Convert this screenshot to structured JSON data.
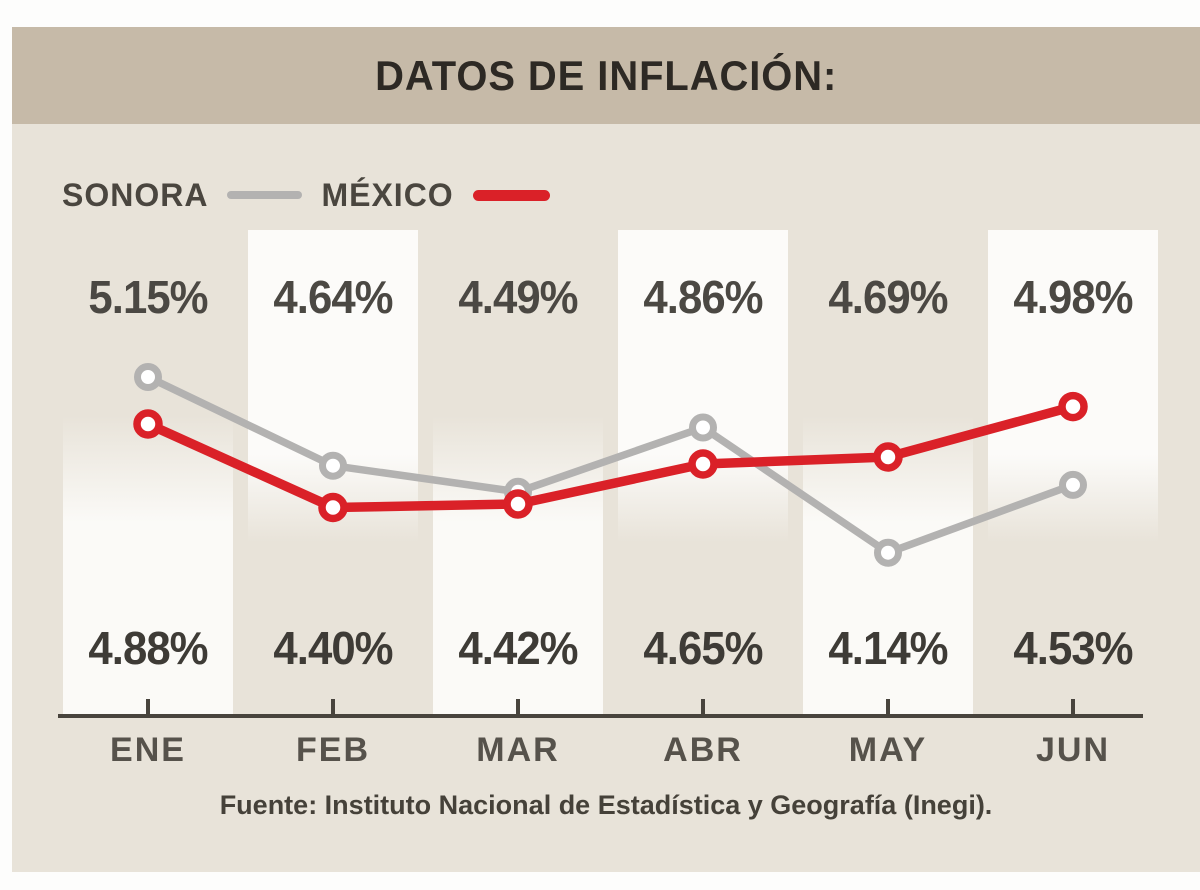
{
  "header": {
    "title": "DATOS DE INFLACIÓN:"
  },
  "legend": {
    "items": [
      {
        "label": "SONORA",
        "color": "#b3b2b1"
      },
      {
        "label": "MÉXICO",
        "color": "#da2128"
      }
    ]
  },
  "footer": {
    "source": "Fuente: Instituto Nacional de Estadística y Geografía (Inegi)."
  },
  "colors": {
    "page_bg": "#fdfdfc",
    "panel_bg": "#e8e3d9",
    "header_band": "#c6baa8",
    "stripe_white": "#fcfbf9",
    "sonora_gray": "#b3b2b1",
    "mexico_red": "#da2128",
    "axis": "#48443d",
    "title_text": "#2d2924",
    "value_text_top": "#4b4843",
    "value_text_bottom": "#3e3b36",
    "month_text": "#56524b"
  },
  "chart_data": {
    "type": "line",
    "title": "DATOS DE INFLACIÓN:",
    "categories": [
      "ENE",
      "FEB",
      "MAR",
      "ABR",
      "MAY",
      "JUN"
    ],
    "series": [
      {
        "name": "SONORA",
        "color": "#b3b2b1",
        "values": [
          5.15,
          4.64,
          4.49,
          4.86,
          4.14,
          4.53
        ]
      },
      {
        "name": "MÉXICO",
        "color": "#da2128",
        "values": [
          4.88,
          4.4,
          4.42,
          4.65,
          4.69,
          4.98
        ]
      }
    ],
    "top_labels": [
      "5.15%",
      "4.64%",
      "4.49%",
      "4.86%",
      "4.69%",
      "4.98%"
    ],
    "bottom_labels": [
      "4.88%",
      "4.40%",
      "4.42%",
      "4.65%",
      "4.14%",
      "4.53%"
    ],
    "top_labels_meaning": "higher value of the two series each month",
    "bottom_labels_meaning": "lower value of the two series each month",
    "unit": "%",
    "ylim": [
      4.0,
      5.3
    ],
    "grid": false,
    "legend_position": "top-left",
    "source": "Fuente: Instituto Nacional de Estadística y Geografía (Inegi)."
  }
}
